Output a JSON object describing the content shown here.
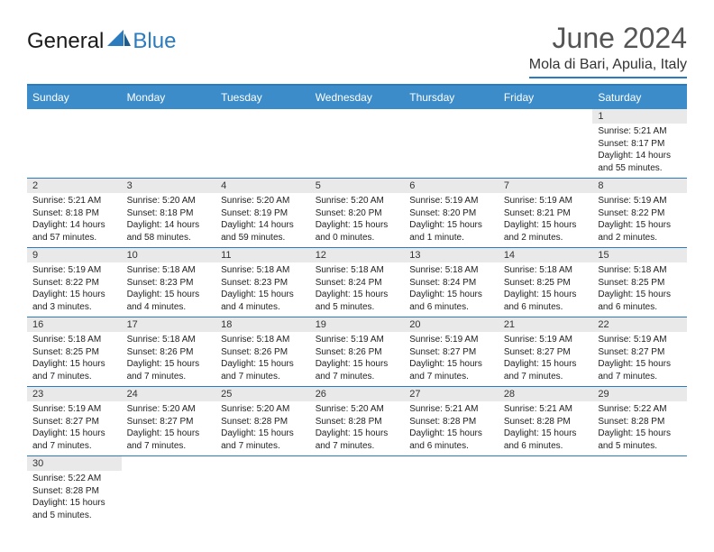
{
  "logo": {
    "text1": "General",
    "text2": "Blue"
  },
  "title": "June 2024",
  "location": "Mola di Bari, Apulia, Italy",
  "colors": {
    "header_bg": "#3b8cc9",
    "header_text": "#ffffff",
    "accent": "#2b7bbf",
    "daynum_bg": "#e9e9e9",
    "body_text": "#222222"
  },
  "weekdays": [
    "Sunday",
    "Monday",
    "Tuesday",
    "Wednesday",
    "Thursday",
    "Friday",
    "Saturday"
  ],
  "weeks": [
    [
      null,
      null,
      null,
      null,
      null,
      null,
      {
        "n": "1",
        "sunrise": "Sunrise: 5:21 AM",
        "sunset": "Sunset: 8:17 PM",
        "daylight": "Daylight: 14 hours and 55 minutes."
      }
    ],
    [
      {
        "n": "2",
        "sunrise": "Sunrise: 5:21 AM",
        "sunset": "Sunset: 8:18 PM",
        "daylight": "Daylight: 14 hours and 57 minutes."
      },
      {
        "n": "3",
        "sunrise": "Sunrise: 5:20 AM",
        "sunset": "Sunset: 8:18 PM",
        "daylight": "Daylight: 14 hours and 58 minutes."
      },
      {
        "n": "4",
        "sunrise": "Sunrise: 5:20 AM",
        "sunset": "Sunset: 8:19 PM",
        "daylight": "Daylight: 14 hours and 59 minutes."
      },
      {
        "n": "5",
        "sunrise": "Sunrise: 5:20 AM",
        "sunset": "Sunset: 8:20 PM",
        "daylight": "Daylight: 15 hours and 0 minutes."
      },
      {
        "n": "6",
        "sunrise": "Sunrise: 5:19 AM",
        "sunset": "Sunset: 8:20 PM",
        "daylight": "Daylight: 15 hours and 1 minute."
      },
      {
        "n": "7",
        "sunrise": "Sunrise: 5:19 AM",
        "sunset": "Sunset: 8:21 PM",
        "daylight": "Daylight: 15 hours and 2 minutes."
      },
      {
        "n": "8",
        "sunrise": "Sunrise: 5:19 AM",
        "sunset": "Sunset: 8:22 PM",
        "daylight": "Daylight: 15 hours and 2 minutes."
      }
    ],
    [
      {
        "n": "9",
        "sunrise": "Sunrise: 5:19 AM",
        "sunset": "Sunset: 8:22 PM",
        "daylight": "Daylight: 15 hours and 3 minutes."
      },
      {
        "n": "10",
        "sunrise": "Sunrise: 5:18 AM",
        "sunset": "Sunset: 8:23 PM",
        "daylight": "Daylight: 15 hours and 4 minutes."
      },
      {
        "n": "11",
        "sunrise": "Sunrise: 5:18 AM",
        "sunset": "Sunset: 8:23 PM",
        "daylight": "Daylight: 15 hours and 4 minutes."
      },
      {
        "n": "12",
        "sunrise": "Sunrise: 5:18 AM",
        "sunset": "Sunset: 8:24 PM",
        "daylight": "Daylight: 15 hours and 5 minutes."
      },
      {
        "n": "13",
        "sunrise": "Sunrise: 5:18 AM",
        "sunset": "Sunset: 8:24 PM",
        "daylight": "Daylight: 15 hours and 6 minutes."
      },
      {
        "n": "14",
        "sunrise": "Sunrise: 5:18 AM",
        "sunset": "Sunset: 8:25 PM",
        "daylight": "Daylight: 15 hours and 6 minutes."
      },
      {
        "n": "15",
        "sunrise": "Sunrise: 5:18 AM",
        "sunset": "Sunset: 8:25 PM",
        "daylight": "Daylight: 15 hours and 6 minutes."
      }
    ],
    [
      {
        "n": "16",
        "sunrise": "Sunrise: 5:18 AM",
        "sunset": "Sunset: 8:25 PM",
        "daylight": "Daylight: 15 hours and 7 minutes."
      },
      {
        "n": "17",
        "sunrise": "Sunrise: 5:18 AM",
        "sunset": "Sunset: 8:26 PM",
        "daylight": "Daylight: 15 hours and 7 minutes."
      },
      {
        "n": "18",
        "sunrise": "Sunrise: 5:18 AM",
        "sunset": "Sunset: 8:26 PM",
        "daylight": "Daylight: 15 hours and 7 minutes."
      },
      {
        "n": "19",
        "sunrise": "Sunrise: 5:19 AM",
        "sunset": "Sunset: 8:26 PM",
        "daylight": "Daylight: 15 hours and 7 minutes."
      },
      {
        "n": "20",
        "sunrise": "Sunrise: 5:19 AM",
        "sunset": "Sunset: 8:27 PM",
        "daylight": "Daylight: 15 hours and 7 minutes."
      },
      {
        "n": "21",
        "sunrise": "Sunrise: 5:19 AM",
        "sunset": "Sunset: 8:27 PM",
        "daylight": "Daylight: 15 hours and 7 minutes."
      },
      {
        "n": "22",
        "sunrise": "Sunrise: 5:19 AM",
        "sunset": "Sunset: 8:27 PM",
        "daylight": "Daylight: 15 hours and 7 minutes."
      }
    ],
    [
      {
        "n": "23",
        "sunrise": "Sunrise: 5:19 AM",
        "sunset": "Sunset: 8:27 PM",
        "daylight": "Daylight: 15 hours and 7 minutes."
      },
      {
        "n": "24",
        "sunrise": "Sunrise: 5:20 AM",
        "sunset": "Sunset: 8:27 PM",
        "daylight": "Daylight: 15 hours and 7 minutes."
      },
      {
        "n": "25",
        "sunrise": "Sunrise: 5:20 AM",
        "sunset": "Sunset: 8:28 PM",
        "daylight": "Daylight: 15 hours and 7 minutes."
      },
      {
        "n": "26",
        "sunrise": "Sunrise: 5:20 AM",
        "sunset": "Sunset: 8:28 PM",
        "daylight": "Daylight: 15 hours and 7 minutes."
      },
      {
        "n": "27",
        "sunrise": "Sunrise: 5:21 AM",
        "sunset": "Sunset: 8:28 PM",
        "daylight": "Daylight: 15 hours and 6 minutes."
      },
      {
        "n": "28",
        "sunrise": "Sunrise: 5:21 AM",
        "sunset": "Sunset: 8:28 PM",
        "daylight": "Daylight: 15 hours and 6 minutes."
      },
      {
        "n": "29",
        "sunrise": "Sunrise: 5:22 AM",
        "sunset": "Sunset: 8:28 PM",
        "daylight": "Daylight: 15 hours and 5 minutes."
      }
    ],
    [
      {
        "n": "30",
        "sunrise": "Sunrise: 5:22 AM",
        "sunset": "Sunset: 8:28 PM",
        "daylight": "Daylight: 15 hours and 5 minutes."
      },
      null,
      null,
      null,
      null,
      null,
      null
    ]
  ]
}
